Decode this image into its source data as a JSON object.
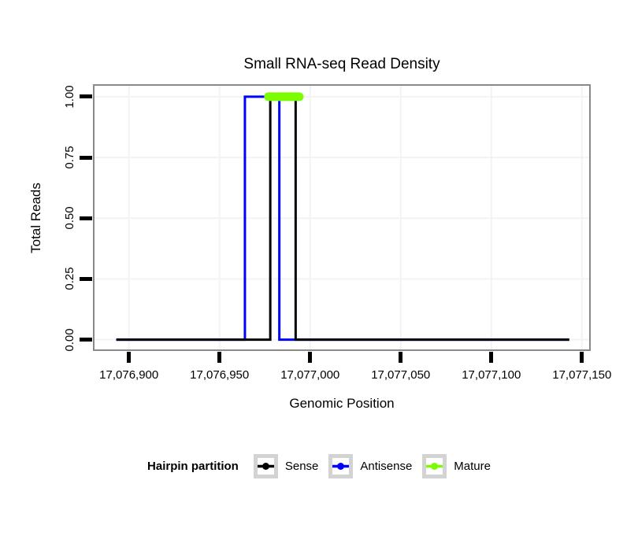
{
  "chart_data": {
    "type": "line",
    "subtype": "step-constant",
    "title": "Small RNA-seq Read Density",
    "xlabel": "Genomic Position",
    "ylabel": "Total Reads",
    "legend_title": "Hairpin partition",
    "legend_position": "bottom",
    "grid": "major",
    "background_color": "#FFFFFF",
    "panel_border_color": "#898989",
    "gridline_color": "#F3F3F3",
    "tick_color": "#000000",
    "xlim": [
      17076881,
      17077154
    ],
    "ylim": [
      -0.04,
      1.045
    ],
    "x_ticks": {
      "values": [
        17076900,
        17076950,
        17077000,
        17077050,
        17077100,
        17077150
      ],
      "labels": [
        "17,076,900",
        "17,076,950",
        "17,077,000",
        "17,077,050",
        "17,077,100",
        "17,077,150"
      ]
    },
    "y_ticks": {
      "values": [
        0,
        0.25,
        0.5,
        0.75,
        1
      ],
      "labels": [
        "0.00",
        "0.25",
        "0.50",
        "0.75",
        "1.00"
      ]
    },
    "series": [
      {
        "name": "Sense",
        "color": "#000000",
        "stroke_width": 3,
        "linecap": "butt",
        "points": [
          [
            17076893,
            0
          ],
          [
            17076978,
            0
          ],
          [
            17076978,
            1
          ],
          [
            17076992,
            1
          ],
          [
            17076992,
            0
          ],
          [
            17077143,
            0
          ]
        ]
      },
      {
        "name": "Antisense",
        "color": "#0000FF",
        "stroke_width": 3,
        "linecap": "butt",
        "points": [
          [
            17076893,
            0
          ],
          [
            17076964,
            0
          ],
          [
            17076964,
            1
          ],
          [
            17076983,
            1
          ],
          [
            17076983,
            0
          ],
          [
            17077143,
            0
          ]
        ]
      },
      {
        "name": "Mature",
        "color": "#7CFC00",
        "stroke_width": 11,
        "linecap": "round",
        "points": [
          [
            17076977,
            1
          ],
          [
            17076994,
            1
          ]
        ]
      }
    ],
    "draw_order": [
      1,
      0,
      2
    ]
  }
}
